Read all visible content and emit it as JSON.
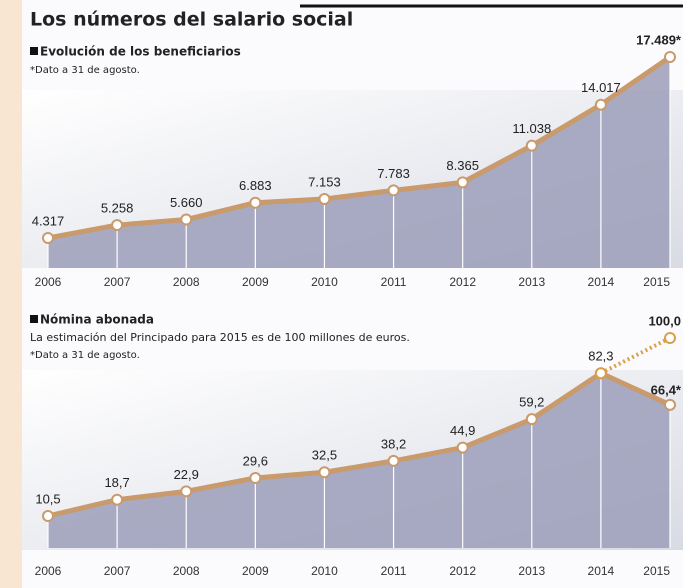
{
  "title": "Los números del salario social",
  "chart_data": [
    {
      "type": "line",
      "title": "Evolución de los beneficiarios",
      "note": "*Dato a 31 de agosto.",
      "categories": [
        "2006",
        "2007",
        "2008",
        "2009",
        "2010",
        "2011",
        "2012",
        "2013",
        "2014",
        "2015"
      ],
      "area_color": "#9c9eba",
      "series": [
        {
          "color": "#c89a6c",
          "line_style": "solid",
          "values": [
            4317,
            5258,
            5660,
            6883,
            7153,
            7783,
            8365,
            11038,
            14017,
            17489
          ],
          "value_labels": [
            "4.317",
            "5.258",
            "5.660",
            "6.883",
            "7.153",
            "7.783",
            "8.365",
            "11.038",
            "14.017",
            "17.489*"
          ]
        }
      ]
    },
    {
      "type": "line",
      "title": "Nómina abonada",
      "subtitle": "La estimación del Principado para 2015 es de 100 millones de euros.",
      "note": "*Dato a 31 de agosto.",
      "categories": [
        "2006",
        "2007",
        "2008",
        "2009",
        "2010",
        "2011",
        "2012",
        "2013",
        "2014",
        "2015"
      ],
      "area_color": "#9c9eba",
      "series": [
        {
          "color": "#c89a6c",
          "line_style": "solid",
          "values": [
            10.5,
            18.7,
            22.9,
            29.6,
            32.5,
            38.2,
            44.9,
            59.2,
            82.3,
            66.4
          ],
          "value_labels": [
            "10,5",
            "18,7",
            "22,9",
            "29,6",
            "32,5",
            "38,2",
            "44,9",
            "59,2",
            "82,3",
            "66,4*"
          ]
        },
        {
          "color": "#d9a04a",
          "line_style": "dotted",
          "values": [
            null,
            null,
            null,
            null,
            null,
            null,
            null,
            null,
            82.3,
            100.0
          ],
          "value_labels": [
            null,
            null,
            null,
            null,
            null,
            null,
            null,
            null,
            null,
            "100,0"
          ]
        }
      ]
    }
  ]
}
